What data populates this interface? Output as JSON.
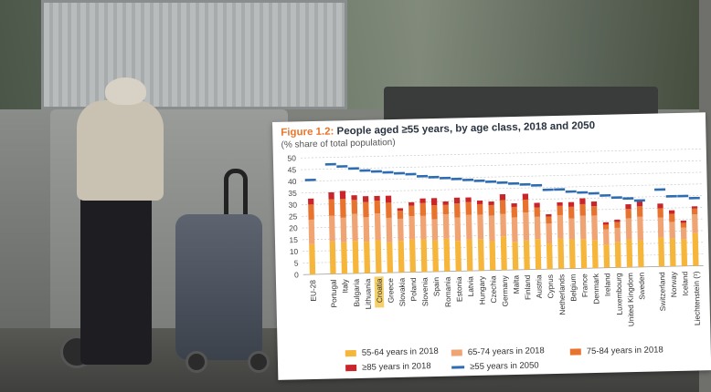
{
  "figure": {
    "number": "Figure 1.2:",
    "title": "People aged ≥55 years, by age class, 2018 and 2050",
    "subtitle": "(% share of total population)"
  },
  "colors": {
    "c55_64": "#f6b53b",
    "c65_74": "#f0a373",
    "c75_84": "#e8732f",
    "c85": "#c8262b",
    "line2050": "#2f6db3",
    "highlight": "#f4d06b",
    "title_accent": "#e8762c"
  },
  "legend": {
    "c55_64": "55-64 years in 2018",
    "c65_74": "65-74 years in 2018",
    "c75_84": "75-84 years in 2018",
    "c85": "≥85 years in 2018",
    "line2050": "≥55 years in 2050"
  },
  "chart_data": {
    "type": "bar",
    "stacked": true,
    "highlighted_category": "Croatia",
    "ylim": [
      0,
      50
    ],
    "yticks": [
      0,
      5,
      10,
      15,
      20,
      25,
      30,
      35,
      40,
      45,
      50
    ],
    "grid": true,
    "legend_position": "bottom",
    "categories": [
      "EU-28",
      "Portugal",
      "Italy",
      "Bulgaria",
      "Lithuania",
      "Croatia",
      "Greece",
      "Slovakia",
      "Poland",
      "Slovenia",
      "Spain",
      "Romania",
      "Estonia",
      "Latvia",
      "Hungary",
      "Czechia",
      "Germany",
      "Malta",
      "Finland",
      "Austria",
      "Cyprus",
      "Netherlands",
      "Belgium",
      "France",
      "Denmark",
      "Ireland",
      "Luxembourg",
      "United Kingdom",
      "Sweden",
      "Switzerland",
      "Norway",
      "Iceland",
      "Liechtenstein (¹)"
    ],
    "series": [
      {
        "name": "55-64 years in 2018",
        "values": [
          13,
          14,
          13.5,
          14,
          13.5,
          14,
          13,
          13.5,
          14,
          14,
          13.5,
          14,
          13,
          13.5,
          13.5,
          12.5,
          14.5,
          12,
          12.5,
          13,
          11,
          13,
          12.5,
          12.5,
          12,
          10,
          11,
          12,
          11.5,
          12.5,
          12,
          11.5,
          14
        ]
      },
      {
        "name": "65-74 years in 2018",
        "values": [
          10.5,
          11,
          10.5,
          11.5,
          10.5,
          11.5,
          10.5,
          9.5,
          10,
          10,
          9,
          10.5,
          10,
          10.5,
          10.5,
          11,
          9.5,
          10.5,
          12,
          9.5,
          8.5,
          10,
          9,
          10,
          10.5,
          6.5,
          6,
          9,
          10,
          8.5,
          7,
          5,
          8
        ]
      },
      {
        "name": "75-84 years in 2018",
        "values": [
          6.5,
          7,
          8,
          6,
          6.5,
          5.5,
          6.5,
          3.5,
          4.5,
          5.5,
          6,
          4,
          6,
          5.5,
          4.5,
          4.5,
          6,
          4.5,
          5.5,
          4,
          3,
          4,
          5,
          5,
          4,
          2,
          2.5,
          4,
          4.5,
          4,
          3.5,
          2,
          2.5
        ]
      },
      {
        "name": "≥85 years in 2018",
        "values": [
          2.5,
          3,
          3.5,
          2,
          2.5,
          2,
          3,
          1,
          1.5,
          2,
          3,
          1.5,
          2.5,
          2,
          1.5,
          1.5,
          2.5,
          1.5,
          2.5,
          2,
          1,
          1.5,
          2,
          2.5,
          2,
          1,
          1,
          2,
          2.5,
          2,
          1.5,
          1,
          1
        ]
      },
      {
        "name": "≥55 years in 2050",
        "type": "line",
        "values": [
          40.5,
          47,
          46,
          45,
          44,
          43.5,
          43,
          42.5,
          42,
          41,
          40.5,
          40,
          39.5,
          39,
          38.5,
          38,
          37.5,
          37,
          36.5,
          36,
          34,
          34,
          33,
          32.5,
          32,
          31,
          30,
          29.5,
          28.5,
          33,
          30,
          30,
          29
        ]
      }
    ]
  }
}
